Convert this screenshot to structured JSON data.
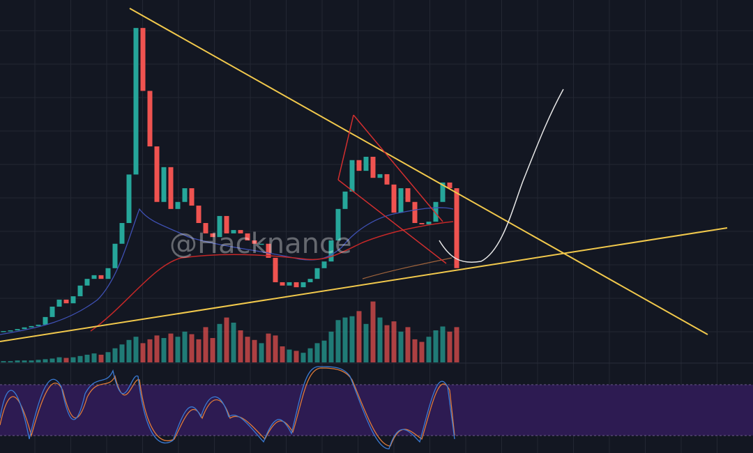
{
  "chart_data": {
    "type": "candlestick",
    "watermark": "@Hacknance",
    "values": [
      5.2,
      5.4,
      5.8,
      6.3,
      6.7,
      7.1,
      9.4,
      12.5,
      14.6,
      13.5,
      15.6,
      18.8,
      20.8,
      21.9,
      20.8,
      24,
      31.3,
      37.5,
      52,
      95.8,
      77,
      60.4,
      43.8,
      54.2,
      41.7,
      43.8,
      47.9,
      42.7,
      37.5,
      34.4,
      33.3,
      39.6,
      34.4,
      35.4,
      34.4,
      32.3,
      31.3,
      31.3,
      27.1,
      19.8,
      18.8,
      19.8,
      18.3,
      19.8,
      20.8,
      24,
      26,
      32.3,
      41.7,
      46.9,
      56.3,
      53.1,
      57.3,
      51,
      52.1,
      49,
      40.6,
      47.9,
      43.8,
      37.5,
      37.1,
      37.9,
      43.8,
      49.6,
      47.9,
      24
    ],
    "volume": [
      2,
      2,
      3,
      3,
      3,
      4,
      5,
      6,
      8,
      7,
      8,
      10,
      12,
      14,
      12,
      16,
      22,
      28,
      35,
      40,
      30,
      36,
      42,
      38,
      45,
      40,
      48,
      44,
      36,
      55,
      38,
      60,
      70,
      62,
      50,
      40,
      35,
      30,
      45,
      42,
      25,
      20,
      18,
      15,
      22,
      30,
      34,
      48,
      66,
      70,
      72,
      80,
      60,
      95,
      70,
      58,
      64,
      48,
      55,
      36,
      32,
      40,
      50,
      56,
      48,
      55
    ],
    "ylim": [
      0,
      100
    ],
    "vlim": [
      0,
      100
    ],
    "up_color": "#26a69a",
    "down_color": "#ef5350"
  }
}
